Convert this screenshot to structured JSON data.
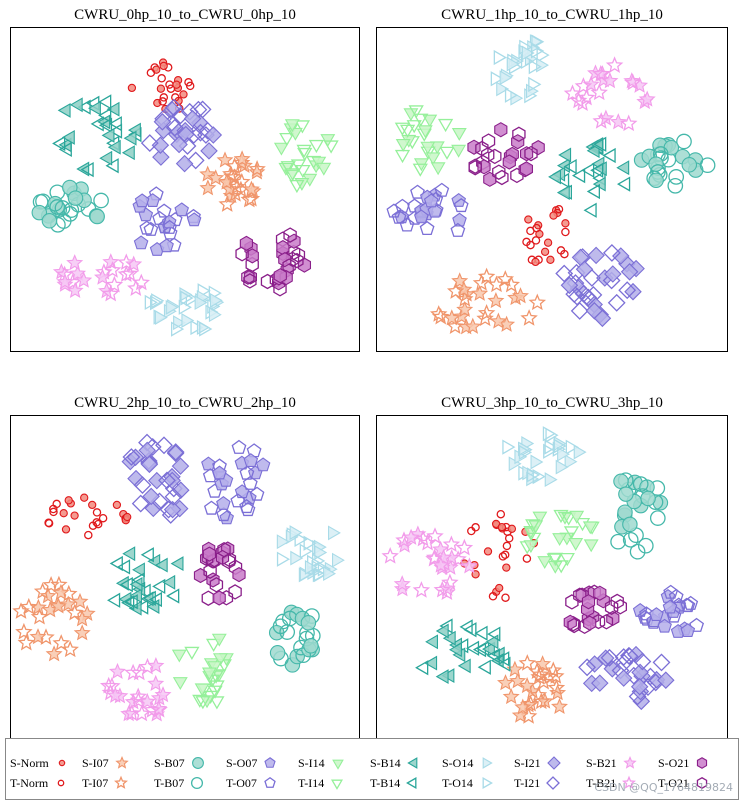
{
  "chart_data": {
    "type": "scatter",
    "description": "t-SNE feature visualisations, source (S-) filled markers vs target (T-) hollow markers",
    "classes": [
      "Norm",
      "I07",
      "B07",
      "O07",
      "I14",
      "B14",
      "O14",
      "I21",
      "B21",
      "O21"
    ],
    "class_colors": {
      "Norm": "#e0191c",
      "I07": "#f0956b",
      "B07": "#45b8aa",
      "O07": "#7b6fd6",
      "I14": "#95f09a",
      "B14": "#2aa69a",
      "O14": "#a9dbe8",
      "I21": "#7b6fd6",
      "B21": "#f29bea",
      "O21": "#8a1f8a"
    },
    "class_fills": {
      "Norm": "#f28a7e",
      "I07": "#f8c7ac",
      "B07": "#9fd9cf",
      "O07": "#b4aeea",
      "I14": "#c8f6c6",
      "B14": "#8ccfc4",
      "O14": "#d6edf4",
      "I21": "#b3aee9",
      "B21": "#f6c7f4",
      "O21": "#c97bc9"
    },
    "class_shapes": {
      "Norm": "circle-s",
      "I07": "star",
      "B07": "circle-l",
      "O07": "pentagon",
      "I14": "tri-down",
      "B14": "tri-left",
      "O14": "tri-right",
      "I21": "diamond",
      "B21": "star",
      "O21": "hexagon"
    },
    "panels": [
      {
        "title": "CWRU_0hp_10_to_CWRU_0hp_10",
        "clusters": [
          {
            "c": "Norm",
            "x": 0.44,
            "y": 0.19,
            "rx": 0.1,
            "ry": 0.09,
            "n": 24
          },
          {
            "c": "I07",
            "x": 0.64,
            "y": 0.48,
            "rx": 0.08,
            "ry": 0.08,
            "n": 26
          },
          {
            "c": "B07",
            "x": 0.15,
            "y": 0.55,
            "rx": 0.12,
            "ry": 0.06,
            "n": 24
          },
          {
            "c": "O07",
            "x": 0.43,
            "y": 0.6,
            "rx": 0.1,
            "ry": 0.09,
            "n": 22
          },
          {
            "c": "I14",
            "x": 0.84,
            "y": 0.37,
            "rx": 0.08,
            "ry": 0.12,
            "n": 24
          },
          {
            "c": "B14",
            "x": 0.24,
            "y": 0.33,
            "rx": 0.13,
            "ry": 0.11,
            "n": 28
          },
          {
            "c": "O14",
            "x": 0.51,
            "y": 0.87,
            "rx": 0.12,
            "ry": 0.07,
            "n": 28
          },
          {
            "c": "I21",
            "x": 0.5,
            "y": 0.33,
            "rx": 0.11,
            "ry": 0.09,
            "n": 30
          },
          {
            "c": "B21",
            "x": 0.26,
            "y": 0.77,
            "rx": 0.13,
            "ry": 0.06,
            "n": 22
          },
          {
            "c": "O21",
            "x": 0.76,
            "y": 0.72,
            "rx": 0.1,
            "ry": 0.1,
            "n": 28
          }
        ]
      },
      {
        "title": "CWRU_1hp_10_to_CWRU_1hp_10",
        "clusters": [
          {
            "c": "Norm",
            "x": 0.48,
            "y": 0.64,
            "rx": 0.07,
            "ry": 0.1,
            "n": 22
          },
          {
            "c": "I07",
            "x": 0.31,
            "y": 0.86,
            "rx": 0.15,
            "ry": 0.09,
            "n": 28
          },
          {
            "c": "B07",
            "x": 0.86,
            "y": 0.42,
            "rx": 0.11,
            "ry": 0.07,
            "n": 24
          },
          {
            "c": "O07",
            "x": 0.17,
            "y": 0.57,
            "rx": 0.13,
            "ry": 0.07,
            "n": 26
          },
          {
            "c": "I14",
            "x": 0.14,
            "y": 0.34,
            "rx": 0.1,
            "ry": 0.1,
            "n": 24
          },
          {
            "c": "B14",
            "x": 0.62,
            "y": 0.46,
            "rx": 0.11,
            "ry": 0.11,
            "n": 26
          },
          {
            "c": "O14",
            "x": 0.4,
            "y": 0.12,
            "rx": 0.09,
            "ry": 0.1,
            "n": 26
          },
          {
            "c": "I21",
            "x": 0.64,
            "y": 0.79,
            "rx": 0.11,
            "ry": 0.11,
            "n": 32
          },
          {
            "c": "B21",
            "x": 0.67,
            "y": 0.21,
            "rx": 0.12,
            "ry": 0.1,
            "n": 22
          },
          {
            "c": "O21",
            "x": 0.37,
            "y": 0.4,
            "rx": 0.1,
            "ry": 0.09,
            "n": 24
          }
        ]
      },
      {
        "title": "CWRU_2hp_10_to_CWRU_2hp_10",
        "clusters": [
          {
            "c": "Norm",
            "x": 0.21,
            "y": 0.31,
            "rx": 0.13,
            "ry": 0.06,
            "n": 24
          },
          {
            "c": "I07",
            "x": 0.12,
            "y": 0.64,
            "rx": 0.11,
            "ry": 0.12,
            "n": 26
          },
          {
            "c": "B07",
            "x": 0.82,
            "y": 0.69,
            "rx": 0.08,
            "ry": 0.09,
            "n": 22
          },
          {
            "c": "O07",
            "x": 0.65,
            "y": 0.21,
            "rx": 0.1,
            "ry": 0.12,
            "n": 26
          },
          {
            "c": "I14",
            "x": 0.56,
            "y": 0.78,
            "rx": 0.09,
            "ry": 0.11,
            "n": 24
          },
          {
            "c": "B14",
            "x": 0.38,
            "y": 0.51,
            "rx": 0.13,
            "ry": 0.09,
            "n": 28
          },
          {
            "c": "O14",
            "x": 0.86,
            "y": 0.42,
            "rx": 0.1,
            "ry": 0.08,
            "n": 26
          },
          {
            "c": "I21",
            "x": 0.42,
            "y": 0.2,
            "rx": 0.09,
            "ry": 0.13,
            "n": 30
          },
          {
            "c": "B21",
            "x": 0.37,
            "y": 0.84,
            "rx": 0.09,
            "ry": 0.1,
            "n": 24
          },
          {
            "c": "O21",
            "x": 0.59,
            "y": 0.49,
            "rx": 0.07,
            "ry": 0.1,
            "n": 22
          }
        ]
      },
      {
        "title": "CWRU_3hp_10_to_CWRU_3hp_10",
        "clusters": [
          {
            "c": "Norm",
            "x": 0.35,
            "y": 0.43,
            "rx": 0.11,
            "ry": 0.14,
            "n": 26
          },
          {
            "c": "I07",
            "x": 0.44,
            "y": 0.85,
            "rx": 0.1,
            "ry": 0.09,
            "n": 26
          },
          {
            "c": "B07",
            "x": 0.74,
            "y": 0.3,
            "rx": 0.08,
            "ry": 0.13,
            "n": 24
          },
          {
            "c": "O07",
            "x": 0.84,
            "y": 0.61,
            "rx": 0.09,
            "ry": 0.07,
            "n": 24
          },
          {
            "c": "I14",
            "x": 0.53,
            "y": 0.38,
            "rx": 0.11,
            "ry": 0.09,
            "n": 26
          },
          {
            "c": "B14",
            "x": 0.25,
            "y": 0.74,
            "rx": 0.14,
            "ry": 0.1,
            "n": 28
          },
          {
            "c": "O14",
            "x": 0.47,
            "y": 0.12,
            "rx": 0.11,
            "ry": 0.08,
            "n": 26
          },
          {
            "c": "I21",
            "x": 0.7,
            "y": 0.81,
            "rx": 0.14,
            "ry": 0.08,
            "n": 28
          },
          {
            "c": "B21",
            "x": 0.15,
            "y": 0.46,
            "rx": 0.12,
            "ry": 0.1,
            "n": 28
          },
          {
            "c": "O21",
            "x": 0.61,
            "y": 0.6,
            "rx": 0.09,
            "ry": 0.06,
            "n": 22
          }
        ]
      }
    ]
  },
  "legend": {
    "items": [
      {
        "label": "S-Norm",
        "c": "Norm",
        "domain": "S"
      },
      {
        "label": "T-Norm",
        "c": "Norm",
        "domain": "T"
      },
      {
        "label": "S-I07",
        "c": "I07",
        "domain": "S"
      },
      {
        "label": "T-I07",
        "c": "I07",
        "domain": "T"
      },
      {
        "label": "S-B07",
        "c": "B07",
        "domain": "S"
      },
      {
        "label": "T-B07",
        "c": "B07",
        "domain": "T"
      },
      {
        "label": "S-O07",
        "c": "O07",
        "domain": "S"
      },
      {
        "label": "T-O07",
        "c": "O07",
        "domain": "T"
      },
      {
        "label": "S-I14",
        "c": "I14",
        "domain": "S"
      },
      {
        "label": "T-I14",
        "c": "I14",
        "domain": "T"
      },
      {
        "label": "S-B14",
        "c": "B14",
        "domain": "S"
      },
      {
        "label": "T-B14",
        "c": "B14",
        "domain": "T"
      },
      {
        "label": "S-O14",
        "c": "O14",
        "domain": "S"
      },
      {
        "label": "T-O14",
        "c": "O14",
        "domain": "T"
      },
      {
        "label": "S-I21",
        "c": "I21",
        "domain": "S"
      },
      {
        "label": "T-I21",
        "c": "I21",
        "domain": "T"
      },
      {
        "label": "S-B21",
        "c": "B21",
        "domain": "S"
      },
      {
        "label": "T-B21",
        "c": "B21",
        "domain": "T"
      },
      {
        "label": "S-O21",
        "c": "O21",
        "domain": "S"
      },
      {
        "label": "T-O21",
        "c": "O21",
        "domain": "T"
      }
    ]
  },
  "watermark": "CSDN @QQ_1764819824"
}
